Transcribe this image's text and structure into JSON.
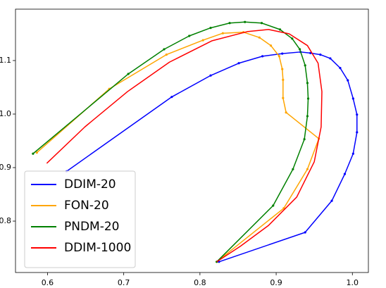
{
  "chart_data": {
    "type": "line",
    "xlim": [
      0.558,
      1.021
    ],
    "ylim": [
      0.704,
      1.196
    ],
    "xticks": [
      0.6,
      0.7,
      0.8,
      0.9,
      {
        "value": 1,
        "label": "1.0"
      }
    ],
    "yticks": [
      0.8,
      0.9,
      {
        "value": 1,
        "label": "1.0"
      },
      1.1
    ],
    "legend": "lower left",
    "series": [
      {
        "name": "DDIM-20",
        "color": "#0000ff",
        "marker": "o",
        "x": [
          0.625,
          0.763,
          0.814,
          0.851,
          0.882,
          0.908,
          0.932,
          0.945,
          0.958,
          0.971,
          0.984,
          0.994,
          1.001,
          1.006,
          1.006,
          1.001,
          0.99,
          0.973,
          0.938,
          0.825
        ],
        "values": [
          0.893,
          1.032,
          1.072,
          1.095,
          1.108,
          1.113,
          1.116,
          1.114,
          1.111,
          1.104,
          1.086,
          1.063,
          1.029,
          0.999,
          0.966,
          0.926,
          0.888,
          0.838,
          0.779,
          0.724
        ]
      },
      {
        "name": "FON-20",
        "color": "#ffa500",
        "marker": "o",
        "x": [
          0.586,
          0.681,
          0.756,
          0.804,
          0.83,
          0.857,
          0.878,
          0.893,
          0.904,
          0.908,
          0.909,
          0.909,
          0.913,
          0.956,
          0.941,
          0.91,
          0.822
        ],
        "values": [
          0.928,
          1.047,
          1.111,
          1.138,
          1.151,
          1.153,
          1.143,
          1.128,
          1.108,
          1.084,
          1.064,
          1.03,
          1.003,
          0.954,
          0.897,
          0.824,
          0.724
        ]
      },
      {
        "name": "PNDM-20",
        "color": "#008000",
        "marker": "o",
        "x": [
          0.581,
          0.706,
          0.753,
          0.786,
          0.814,
          0.839,
          0.859,
          0.881,
          0.905,
          0.921,
          0.931,
          0.938,
          0.941,
          0.942,
          0.941,
          0.937,
          0.922,
          0.896,
          0.822
        ],
        "values": [
          0.926,
          1.075,
          1.121,
          1.146,
          1.161,
          1.17,
          1.172,
          1.17,
          1.158,
          1.141,
          1.121,
          1.091,
          1.058,
          1.029,
          0.996,
          0.953,
          0.897,
          0.829,
          0.724
        ]
      },
      {
        "name": "DDIM-1000",
        "color": "#ff0000",
        "marker": "none",
        "x": [
          0.599,
          0.649,
          0.705,
          0.76,
          0.816,
          0.862,
          0.89,
          0.917,
          0.941,
          0.955,
          0.96,
          0.959,
          0.95,
          0.927,
          0.89,
          0.853,
          0.822
        ],
        "values": [
          0.908,
          0.976,
          1.042,
          1.097,
          1.137,
          1.154,
          1.158,
          1.15,
          1.128,
          1.095,
          1.042,
          0.976,
          0.911,
          0.845,
          0.792,
          0.753,
          0.724
        ]
      }
    ]
  }
}
